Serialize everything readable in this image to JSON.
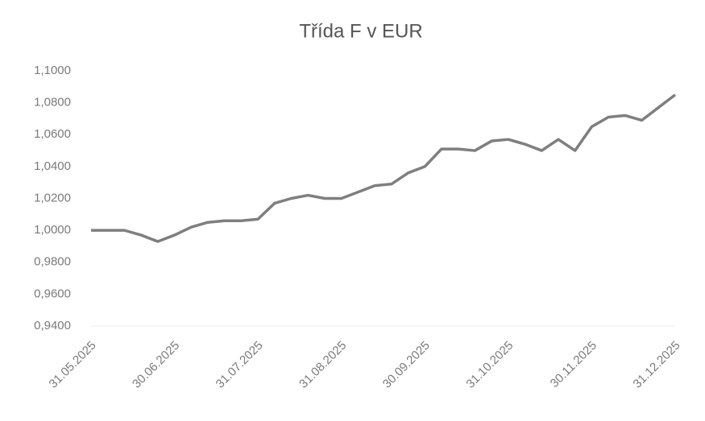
{
  "chart_data": {
    "type": "line",
    "title": "Třída F v EUR",
    "categories": [
      "31.05.2025",
      null,
      null,
      null,
      null,
      "30.06.2025",
      null,
      null,
      null,
      null,
      "31.07.2025",
      null,
      null,
      null,
      null,
      "31.08.2025",
      null,
      null,
      null,
      null,
      "30.09.2025",
      null,
      null,
      null,
      null,
      "31.10.2025",
      null,
      null,
      null,
      null,
      "30.11.2025",
      null,
      null,
      null,
      null,
      "31.12.2025"
    ],
    "series": [
      {
        "name": "Třída F v EUR",
        "color": "#7f7f7f",
        "values": [
          1.0,
          1.0,
          1.0,
          0.997,
          0.993,
          0.997,
          1.002,
          1.005,
          1.006,
          1.006,
          1.007,
          1.017,
          1.02,
          1.022,
          1.02,
          1.02,
          1.024,
          1.028,
          1.029,
          1.036,
          1.04,
          1.051,
          1.051,
          1.05,
          1.056,
          1.057,
          1.054,
          1.05,
          1.057,
          1.05,
          1.065,
          1.071,
          1.072,
          1.069,
          1.077,
          1.085
        ]
      }
    ],
    "ylim": [
      0.94,
      1.1
    ],
    "yticks": [
      {
        "value": 0.94,
        "label": "0,9400"
      },
      {
        "value": 0.96,
        "label": "0,9600"
      },
      {
        "value": 0.98,
        "label": "0,9800"
      },
      {
        "value": 1.0,
        "label": "1,0000"
      },
      {
        "value": 1.02,
        "label": "1,0200"
      },
      {
        "value": 1.04,
        "label": "1,0400"
      },
      {
        "value": 1.06,
        "label": "1,0600"
      },
      {
        "value": 1.08,
        "label": "1,0800"
      },
      {
        "value": 1.1,
        "label": "1,1000"
      }
    ],
    "grid": false
  }
}
